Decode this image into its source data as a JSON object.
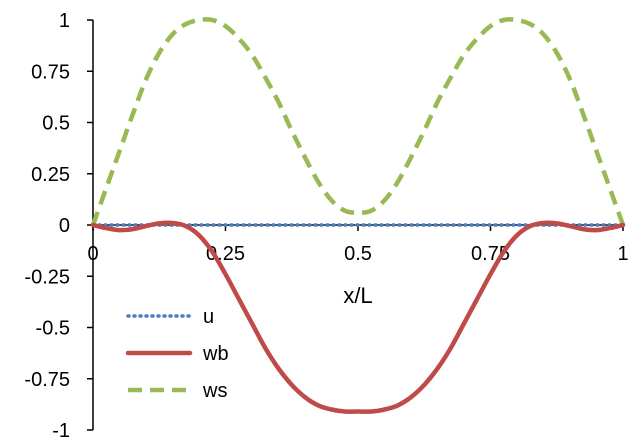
{
  "chart_data": {
    "type": "line",
    "title": "",
    "xlabel": "x/L",
    "ylabel": "",
    "xlim": [
      0,
      1
    ],
    "ylim": [
      -1,
      1
    ],
    "x_ticks": [
      0,
      0.25,
      0.5,
      0.75,
      1
    ],
    "x_tick_labels": [
      "0",
      "0.25",
      "0.5",
      "0.75",
      "1"
    ],
    "y_ticks": [
      1,
      0.75,
      0.5,
      0.25,
      0,
      -0.25,
      -0.5,
      -0.75,
      -1
    ],
    "y_tick_labels": [
      "1",
      "0.75",
      "0.5",
      "0.25",
      "0",
      "-0.25",
      "-0.5",
      "-0.75",
      "-1"
    ],
    "grid": false,
    "legend_position": "bottom-left",
    "x": [
      0,
      0.025,
      0.05,
      0.075,
      0.1,
      0.125,
      0.15,
      0.175,
      0.2,
      0.225,
      0.25,
      0.275,
      0.3,
      0.325,
      0.35,
      0.375,
      0.4,
      0.425,
      0.45,
      0.475,
      0.5,
      0.525,
      0.55,
      0.575,
      0.6,
      0.625,
      0.65,
      0.675,
      0.7,
      0.725,
      0.75,
      0.775,
      0.8,
      0.825,
      0.85,
      0.875,
      0.9,
      0.925,
      0.95,
      0.975,
      1
    ],
    "series": [
      {
        "name": "u",
        "color": "#4a7ebb",
        "style": "dotted",
        "values": [
          0,
          0,
          0,
          0,
          0,
          0,
          0,
          0,
          0,
          0,
          0,
          0,
          0,
          0,
          0,
          0,
          0,
          0,
          0,
          0,
          0,
          0,
          0,
          0,
          0,
          0,
          0,
          0,
          0,
          0,
          0,
          0,
          0,
          0,
          0,
          0,
          0,
          0,
          0,
          0,
          0
        ]
      },
      {
        "name": "wb",
        "color": "#be4b48",
        "style": "solid",
        "values": [
          0,
          -0.015,
          -0.025,
          -0.02,
          -0.005,
          0.008,
          0.01,
          -0.005,
          -0.05,
          -0.13,
          -0.24,
          -0.36,
          -0.48,
          -0.6,
          -0.7,
          -0.78,
          -0.84,
          -0.88,
          -0.9,
          -0.91,
          -0.91,
          -0.91,
          -0.9,
          -0.88,
          -0.84,
          -0.78,
          -0.7,
          -0.6,
          -0.48,
          -0.36,
          -0.24,
          -0.13,
          -0.05,
          -0.005,
          0.01,
          0.008,
          -0.005,
          -0.02,
          -0.025,
          -0.015,
          0
        ]
      },
      {
        "name": "ws",
        "color": "#98b954",
        "style": "dashed",
        "values": [
          0,
          0.18,
          0.36,
          0.54,
          0.71,
          0.84,
          0.93,
          0.98,
          1.0,
          1.0,
          0.97,
          0.91,
          0.83,
          0.72,
          0.6,
          0.46,
          0.33,
          0.21,
          0.12,
          0.07,
          0.06,
          0.07,
          0.12,
          0.21,
          0.33,
          0.46,
          0.6,
          0.72,
          0.83,
          0.91,
          0.97,
          1.0,
          1.0,
          0.98,
          0.93,
          0.84,
          0.71,
          0.54,
          0.36,
          0.18,
          0
        ]
      }
    ]
  }
}
